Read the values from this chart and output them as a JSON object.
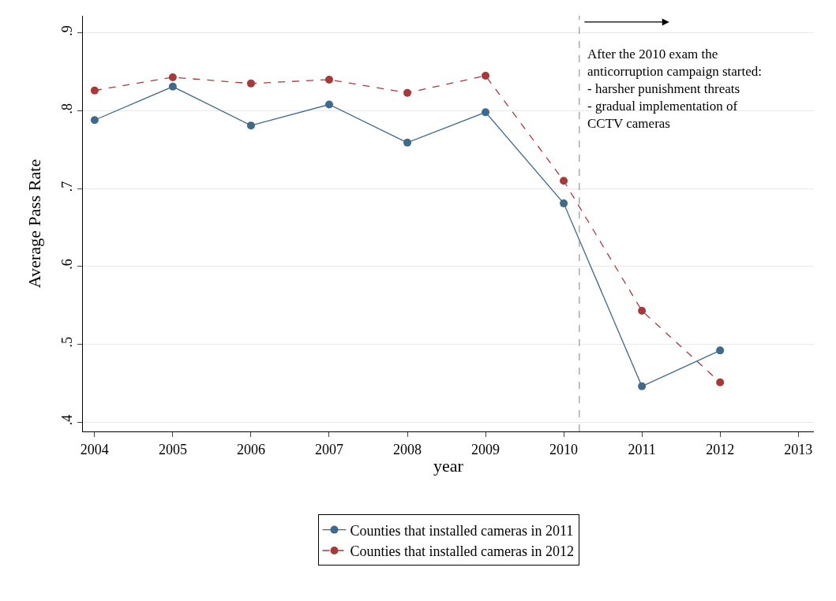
{
  "chart_data": {
    "type": "line",
    "xlabel": "year",
    "ylabel": "Average Pass Rate",
    "x": [
      2004,
      2005,
      2006,
      2007,
      2008,
      2009,
      2010,
      2011,
      2012
    ],
    "series": [
      {
        "name": "Counties that installed cameras in 2011",
        "color": "#3f6a8c",
        "line_style": "solid",
        "values": [
          0.788,
          0.831,
          0.781,
          0.808,
          0.759,
          0.798,
          0.681,
          0.446,
          0.492
        ]
      },
      {
        "name": "Counties that installed cameras in 2012",
        "color": "#a8393b",
        "line_style": "dashed",
        "values": [
          0.826,
          0.843,
          0.835,
          0.84,
          0.823,
          0.845,
          0.71,
          0.543,
          0.451
        ]
      }
    ],
    "xlim": [
      2003.85,
      2013.2
    ],
    "xticks": [
      2004,
      2005,
      2006,
      2007,
      2008,
      2009,
      2010,
      2011,
      2012,
      2013
    ],
    "ylim": [
      0.388,
      0.922
    ],
    "yticks": [
      {
        "value": 0.4,
        "label": ".4"
      },
      {
        "value": 0.5,
        "label": ".5"
      },
      {
        "value": 0.6,
        "label": ".6"
      },
      {
        "value": 0.7,
        "label": ".7"
      },
      {
        "value": 0.8,
        "label": ".8"
      },
      {
        "value": 0.9,
        "label": ".9"
      }
    ],
    "ref_lines": [
      {
        "axis": "x",
        "value": 2010.2,
        "color": "#808080",
        "line_style": "dashed"
      }
    ],
    "annotations": [
      "After the 2010 exam the\nanticorruption campaign started:\n- harsher punishment threats\n- gradual implementation of\nCCTV cameras"
    ],
    "grid": "y",
    "legend": "bottom",
    "marker": "circle"
  }
}
